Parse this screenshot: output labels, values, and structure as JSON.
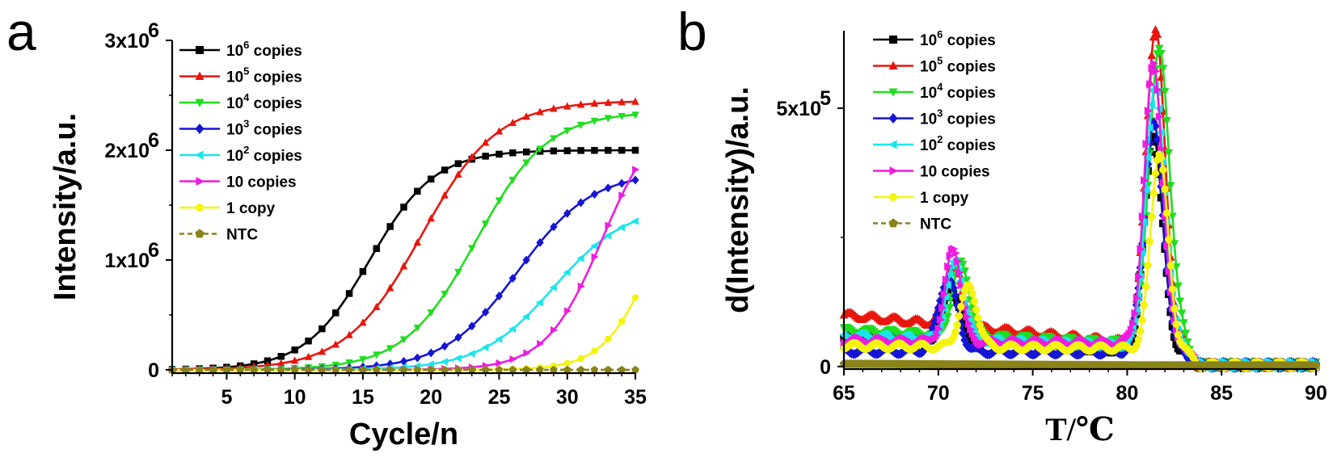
{
  "figure": {
    "panel_labels": [
      "a",
      "b"
    ]
  },
  "chart_data": [
    {
      "id": "a",
      "type": "line",
      "title": "",
      "xlabel": "Cycle/n",
      "ylabel": "Intensity/a.u.",
      "xlim": [
        1,
        35
      ],
      "ylim": [
        -30000,
        3000000
      ],
      "x_ticks": [
        5,
        10,
        15,
        20,
        25,
        30,
        35
      ],
      "y_ticks": [
        {
          "value": 0,
          "mantissa": "0",
          "exp": ""
        },
        {
          "value": 1000000,
          "mantissa": "1x10",
          "exp": "6"
        },
        {
          "value": 2000000,
          "mantissa": "2x10",
          "exp": "6"
        },
        {
          "value": 3000000,
          "mantissa": "3x10",
          "exp": "6"
        }
      ],
      "legend_position": "top-left",
      "grid": false,
      "model": "sigmoid",
      "x": [
        1,
        35
      ],
      "series": [
        {
          "name_base": "10",
          "name_sup": "6",
          "name_rest": " copies",
          "color": "#000000",
          "marker": "square",
          "dash": "",
          "top": 2000000,
          "mid": 15.5,
          "k": 0.42,
          "values_at_cycle_35": 2000000
        },
        {
          "name_base": "10",
          "name_sup": "5",
          "name_rest": " copies",
          "color": "#e8160c",
          "marker": "triangle-up",
          "dash": "",
          "top": 2450000,
          "mid": 19.3,
          "k": 0.36,
          "values_at_cycle_35": 2450000
        },
        {
          "name_base": "10",
          "name_sup": "4",
          "name_rest": " copies",
          "color": "#1ede1e",
          "marker": "triangle-down",
          "dash": "",
          "top": 2350000,
          "mid": 23.3,
          "k": 0.38,
          "values_at_cycle_35": 2330000
        },
        {
          "name_base": "10",
          "name_sup": "3",
          "name_rest": " copies",
          "color": "#1515d5",
          "marker": "diamond",
          "dash": "",
          "top": 1800000,
          "mid": 26.4,
          "k": 0.37,
          "values_at_cycle_35": 1730000
        },
        {
          "name_base": "10",
          "name_sup": "2",
          "name_rest": " copies",
          "color": "#1ae5ec",
          "marker": "triangle-left",
          "dash": "",
          "top": 1500000,
          "mid": 29.0,
          "k": 0.37,
          "values_at_cycle_35": 1380000
        },
        {
          "name_base": "10 copies",
          "name_sup": "",
          "name_rest": "",
          "color": "#ec1ce0",
          "marker": "triangle-right",
          "dash": "",
          "top": 2400000,
          "mid": 32.6,
          "k": 0.48,
          "values_at_cycle_35": 1900000
        },
        {
          "name_base": "1 copy",
          "name_sup": "",
          "name_rest": "",
          "color": "#f4f40e",
          "marker": "circle",
          "dash": "",
          "top": 2000000,
          "mid": 36.3,
          "k": 0.55,
          "values_at_cycle_35": 820000
        },
        {
          "name_base": "NTC",
          "name_sup": "",
          "name_rest": "",
          "color": "#8a8318",
          "marker": "pentagon",
          "dash": "6,4",
          "top": 0,
          "mid": 50,
          "k": 0.1,
          "values_at_cycle_35": 0
        }
      ]
    },
    {
      "id": "b",
      "type": "line",
      "title": "",
      "xlabel": "T/℃",
      "ylabel": "d(Intensity)/a.u.",
      "xlim": [
        65,
        90
      ],
      "ylim": [
        -5000,
        650000
      ],
      "x_ticks": [
        65,
        70,
        75,
        80,
        85,
        90
      ],
      "y_ticks": [
        {
          "value": 0,
          "mantissa": "0",
          "exp": ""
        },
        {
          "value": 500000,
          "mantissa": "5x10",
          "exp": "5"
        }
      ],
      "legend_position": "top-left",
      "grid": false,
      "model": "melt-curve",
      "series": [
        {
          "name_base": "10",
          "name_sup": "6",
          "name_rest": " copies",
          "color": "#000000",
          "marker": "square",
          "dash": "",
          "base_start": 60000,
          "base_end": 30000,
          "small_peak_T": 70.7,
          "small_peak_h": 100000,
          "small_peak_w": 0.45,
          "main_peak_T": 81.4,
          "main_peak_h": 420000,
          "main_peak_w": 0.48
        },
        {
          "name_base": "10",
          "name_sup": "5",
          "name_rest": " copies",
          "color": "#e8160c",
          "marker": "triangle-up",
          "dash": "",
          "base_start": 100000,
          "base_end": 45000,
          "small_peak_T": 70.8,
          "small_peak_h": 120000,
          "small_peak_w": 0.45,
          "main_peak_T": 81.5,
          "main_peak_h": 610000,
          "main_peak_w": 0.5
        },
        {
          "name_base": "10",
          "name_sup": "4",
          "name_rest": " copies",
          "color": "#1ede1e",
          "marker": "triangle-down",
          "dash": "",
          "base_start": 70000,
          "base_end": 45000,
          "small_peak_T": 71.2,
          "small_peak_h": 140000,
          "small_peak_w": 0.45,
          "main_peak_T": 81.7,
          "main_peak_h": 565000,
          "main_peak_w": 0.55
        },
        {
          "name_base": "10",
          "name_sup": "3",
          "name_rest": " copies",
          "color": "#1515d5",
          "marker": "diamond",
          "dash": "",
          "base_start": 30000,
          "base_end": 28000,
          "small_peak_T": 70.5,
          "small_peak_h": 140000,
          "small_peak_w": 0.5,
          "main_peak_T": 81.4,
          "main_peak_h": 440000,
          "main_peak_w": 0.5
        },
        {
          "name_base": "10",
          "name_sup": "2",
          "name_rest": " copies",
          "color": "#1ae5ec",
          "marker": "triangle-left",
          "dash": "",
          "base_start": 60000,
          "base_end": 40000,
          "small_peak_T": 70.9,
          "small_peak_h": 150000,
          "small_peak_w": 0.45,
          "main_peak_T": 81.5,
          "main_peak_h": 500000,
          "main_peak_w": 0.5
        },
        {
          "name_base": "10 copies",
          "name_sup": "",
          "name_rest": "",
          "color": "#ec1ce0",
          "marker": "triangle-right",
          "dash": "",
          "base_start": 50000,
          "base_end": 45000,
          "small_peak_T": 70.8,
          "small_peak_h": 180000,
          "small_peak_w": 0.42,
          "main_peak_T": 81.4,
          "main_peak_h": 540000,
          "main_peak_w": 0.48
        },
        {
          "name_base": "1 copy",
          "name_sup": "",
          "name_rest": "",
          "color": "#f4f40e",
          "marker": "circle",
          "dash": "",
          "base_start": 40000,
          "base_end": 35000,
          "small_peak_T": 71.6,
          "small_peak_h": 115000,
          "small_peak_w": 0.45,
          "main_peak_T": 81.7,
          "main_peak_h": 380000,
          "main_peak_w": 0.45
        },
        {
          "name_base": "NTC",
          "name_sup": "",
          "name_rest": "",
          "color": "#8a8318",
          "marker": "pentagon",
          "dash": "6,4",
          "base_start": 5000,
          "base_end": 2000,
          "small_peak_T": 70,
          "small_peak_h": 0,
          "small_peak_w": 1,
          "main_peak_T": 81,
          "main_peak_h": 0,
          "main_peak_w": 1
        }
      ]
    }
  ]
}
